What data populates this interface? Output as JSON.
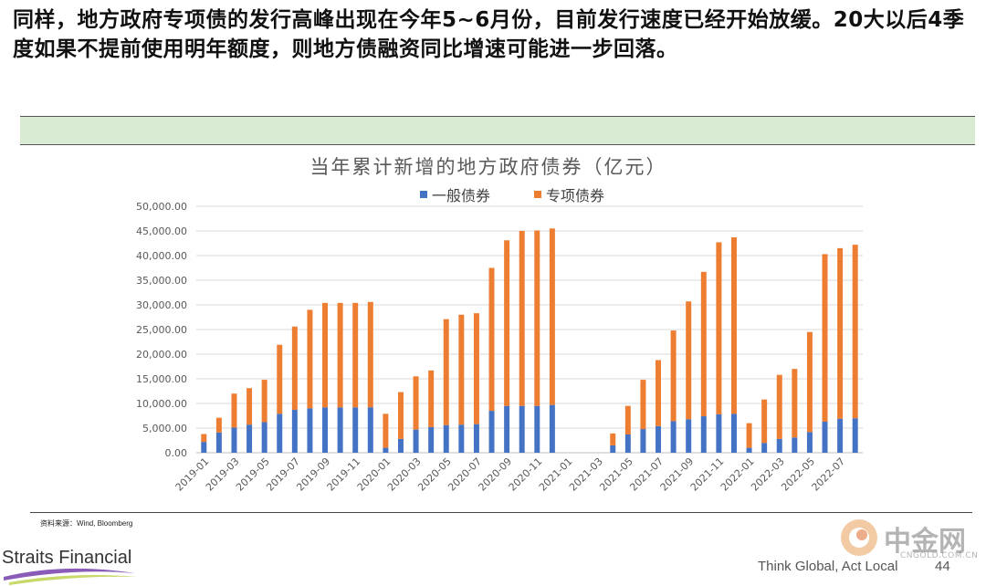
{
  "slide": {
    "headline": "同样，地方政府专项债的发行高峰出现在今年5~6月份，目前发行速度已经开始放缓。20大以后4季度如果不提前使用明年额度，则地方债融资同比增速可能进一步回落。",
    "source": "资料来源：Wind, Bloomberg",
    "brand": "Straits Financial",
    "tagline": "Think Global, Act Local",
    "page": "44",
    "watermark_name": "中金网",
    "watermark_url": "CNGOLD.COM.CN"
  },
  "colors": {
    "general": "#4472c4",
    "special": "#ed7d31",
    "band": "#d9ecd3"
  },
  "chart_data": {
    "type": "bar",
    "stacked": true,
    "title": "当年累计新增的地方政府债券（亿元）",
    "legend_position": "top",
    "ylim": [
      0,
      50000
    ],
    "yticks": [
      "0.00",
      "5,000.00",
      "10,000.00",
      "15,000.00",
      "20,000.00",
      "25,000.00",
      "30,000.00",
      "35,000.00",
      "40,000.00",
      "45,000.00",
      "50,000.00"
    ],
    "categories": [
      "2019-01",
      "2019-02",
      "2019-03",
      "2019-04",
      "2019-05",
      "2019-06",
      "2019-07",
      "2019-08",
      "2019-09",
      "2019-10",
      "2019-11",
      "2019-12",
      "2020-01",
      "2020-02",
      "2020-03",
      "2020-04",
      "2020-05",
      "2020-06",
      "2020-07",
      "2020-08",
      "2020-09",
      "2020-10",
      "2020-11",
      "2020-12",
      "2021-01",
      "2021-02",
      "2021-03",
      "2021-04",
      "2021-05",
      "2021-06",
      "2021-07",
      "2021-08",
      "2021-09",
      "2021-10",
      "2021-11",
      "2021-12",
      "2022-01",
      "2022-02",
      "2022-03",
      "2022-04",
      "2022-05",
      "2022-06",
      "2022-07",
      "2022-08"
    ],
    "xtick_labels": [
      "2019-01",
      "2019-03",
      "2019-05",
      "2019-07",
      "2019-09",
      "2019-11",
      "2020-01",
      "2020-03",
      "2020-05",
      "2020-07",
      "2020-09",
      "2020-11",
      "2021-01",
      "2021-03",
      "2021-05",
      "2021-07",
      "2021-09",
      "2021-11",
      "2022-01",
      "2022-03",
      "2022-05",
      "2022-07"
    ],
    "series": [
      {
        "name": "一般债券",
        "values": [
          2200,
          4100,
          5100,
          5700,
          6200,
          7900,
          8700,
          9000,
          9200,
          9200,
          9200,
          9200,
          1000,
          2800,
          4700,
          5200,
          5600,
          5700,
          5800,
          8500,
          9500,
          9500,
          9500,
          9700,
          0,
          0,
          0,
          1500,
          3700,
          4800,
          5400,
          6400,
          6800,
          7400,
          7800,
          7900,
          1000,
          2000,
          2800,
          3100,
          4200,
          6300,
          6900,
          7000
        ]
      },
      {
        "name": "专项债券",
        "values": [
          1600,
          3000,
          6900,
          7400,
          8600,
          14000,
          16900,
          20000,
          21200,
          21200,
          21200,
          21400,
          6900,
          9500,
          10800,
          11500,
          21500,
          22300,
          22500,
          29000,
          33600,
          35500,
          35600,
          35800,
          0,
          0,
          0,
          2400,
          5800,
          10000,
          13400,
          18400,
          23900,
          29300,
          34900,
          35800,
          5000,
          8800,
          13000,
          13900,
          20300,
          34000,
          34600,
          35200
        ]
      }
    ]
  }
}
